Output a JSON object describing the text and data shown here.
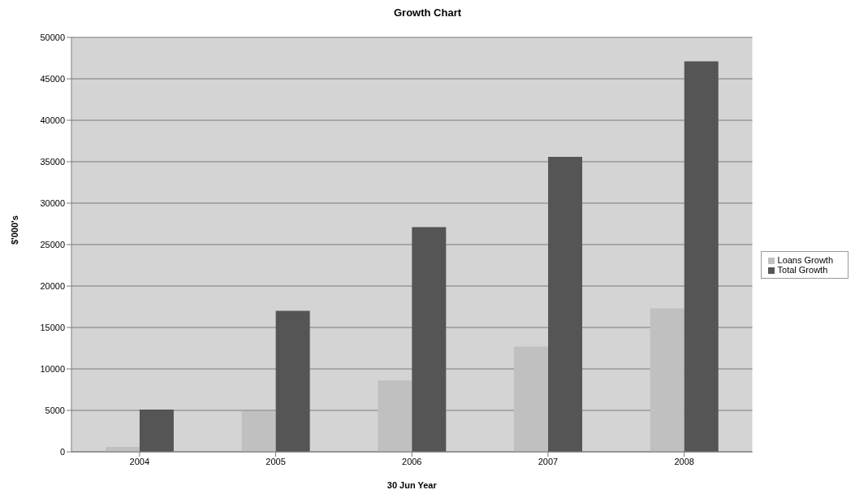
{
  "chart_data": {
    "type": "bar",
    "title": "Growth Chart",
    "xlabel": "30 Jun Year",
    "ylabel": "$'000's",
    "categories": [
      "2004",
      "2005",
      "2006",
      "2007",
      "2008"
    ],
    "series": [
      {
        "name": "Loans Growth",
        "color": "#c0c0c0",
        "values": [
          600,
          4900,
          8600,
          12700,
          17300
        ]
      },
      {
        "name": "Total Growth",
        "color": "#555555",
        "values": [
          5100,
          17000,
          27100,
          35600,
          47100
        ]
      }
    ],
    "ylim": [
      0,
      50000
    ],
    "yticks": [
      0,
      5000,
      10000,
      15000,
      20000,
      25000,
      30000,
      35000,
      40000,
      45000,
      50000
    ],
    "grid": "y",
    "legend": "right"
  }
}
